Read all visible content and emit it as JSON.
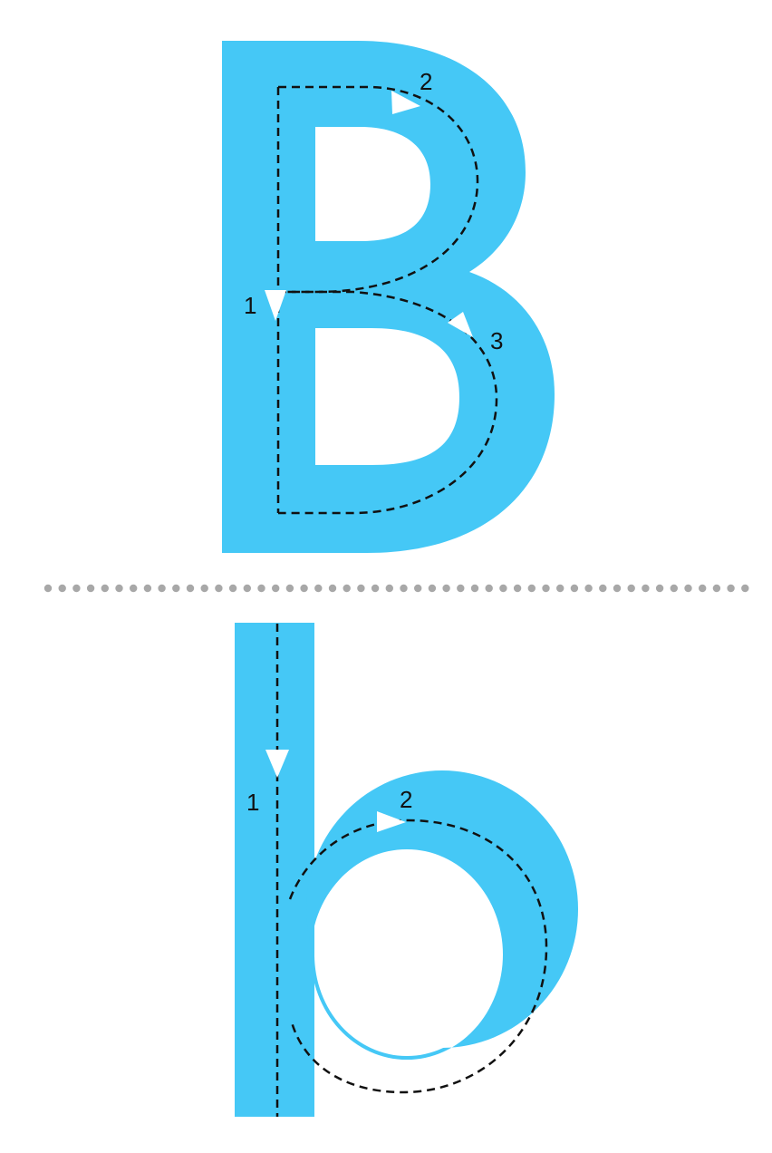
{
  "colors": {
    "letter_fill": "#45C8F6",
    "background": "#FFFFFF",
    "guide_line": "#111111",
    "arrow": "#FFFFFF",
    "divider_dots": "#A8A8A8"
  },
  "uppercase": {
    "letter": "B",
    "strokes": [
      {
        "label": "1"
      },
      {
        "label": "2"
      },
      {
        "label": "3"
      }
    ]
  },
  "lowercase": {
    "letter": "b",
    "strokes": [
      {
        "label": "1"
      },
      {
        "label": "2"
      }
    ]
  }
}
